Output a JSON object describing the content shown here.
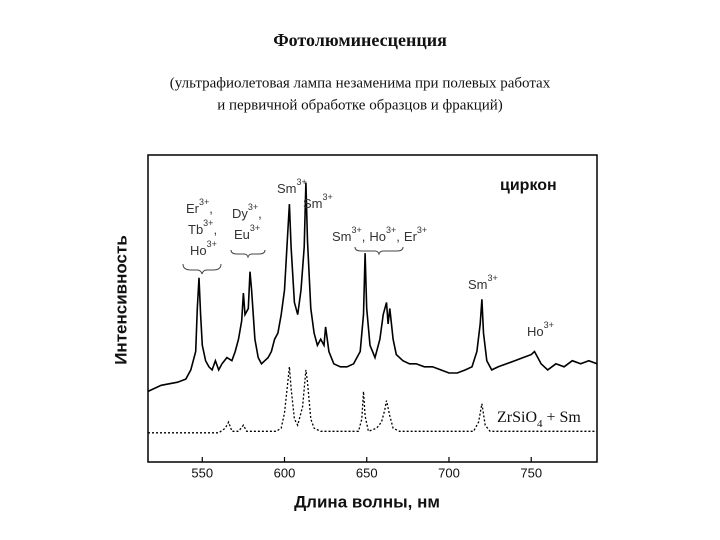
{
  "chart_data": {
    "type": "line",
    "title": "Фотолюминесценция",
    "subtitle": [
      "(ультрафиолетовая лампа незаменима при полевых работах",
      "и первичной обработке образцов и фракций)"
    ],
    "x_label": "Длина волны, нм",
    "y_label": "Интенсивность",
    "xlim": [
      517,
      790
    ],
    "xticks": [
      550,
      600,
      650,
      700,
      750
    ],
    "ylim": [
      0,
      100
    ],
    "series": [
      {
        "name": "циркон",
        "color": "#000000",
        "style": "solid",
        "x": [
          517,
          525,
          535,
          540,
          543,
          546,
          547,
          548,
          549,
          550,
          552,
          554,
          556,
          558,
          560,
          562,
          565,
          568,
          570,
          572,
          574,
          575,
          576,
          578,
          579,
          580,
          582,
          584,
          586,
          588,
          590,
          592,
          594,
          596,
          598,
          600,
          602,
          603,
          604,
          606,
          608,
          610,
          612,
          613,
          614,
          616,
          618,
          620,
          622,
          624,
          625,
          627,
          630,
          634,
          638,
          642,
          646,
          648,
          649,
          650,
          652,
          655,
          658,
          660,
          662,
          663,
          664,
          666,
          668,
          672,
          676,
          680,
          685,
          690,
          695,
          700,
          705,
          710,
          714,
          717,
          719,
          720,
          721,
          723,
          726,
          730,
          735,
          740,
          745,
          750,
          752,
          754,
          756,
          760,
          765,
          770,
          775,
          780,
          785,
          790
        ],
        "values": [
          23,
          25,
          26,
          27,
          30,
          36,
          50,
          60,
          48,
          38,
          33,
          31,
          30,
          33,
          30,
          32,
          34,
          33,
          36,
          40,
          46,
          55,
          48,
          50,
          62,
          56,
          40,
          34,
          32,
          33,
          34,
          36,
          40,
          42,
          48,
          56,
          75,
          84,
          70,
          52,
          48,
          56,
          70,
          91,
          72,
          50,
          42,
          38,
          40,
          38,
          44,
          36,
          32,
          31,
          31,
          32,
          36,
          48,
          68,
          50,
          38,
          34,
          40,
          48,
          52,
          45,
          50,
          40,
          35,
          33,
          32,
          32,
          31,
          31,
          30,
          29,
          29,
          30,
          31,
          36,
          45,
          53,
          42,
          33,
          30,
          31,
          32,
          33,
          34,
          35,
          36,
          34,
          32,
          30,
          32,
          31,
          33,
          32,
          33,
          32
        ]
      },
      {
        "name": "ZrSiO4 + Sm",
        "color": "#000000",
        "style": "dotted",
        "x": [
          517,
          540,
          560,
          564,
          566,
          568,
          572,
          575,
          577,
          585,
          595,
          598,
          600,
          602,
          603,
          604,
          606,
          608,
          611,
          613,
          614,
          616,
          618,
          622,
          630,
          640,
          645,
          647,
          648,
          649,
          651,
          656,
          659,
          661,
          662,
          664,
          666,
          670,
          680,
          700,
          715,
          718,
          720,
          722,
          725,
          750,
          790
        ],
        "values": [
          9.5,
          9.5,
          9.5,
          11,
          13,
          10,
          10,
          12,
          10,
          10,
          10,
          11,
          16,
          26,
          31,
          24,
          14,
          12,
          18,
          30,
          26,
          14,
          11,
          10,
          10,
          10,
          10,
          14,
          23,
          15,
          10,
          11,
          13,
          17,
          20,
          15,
          11,
          10,
          10,
          10,
          10,
          13,
          19,
          12,
          10,
          10,
          10
        ]
      }
    ],
    "annotations": [
      {
        "ions": [
          {
            "symbol": "Er",
            "charge": "3+"
          },
          {
            "symbol": "Tb",
            "charge": "3+"
          },
          {
            "symbol": "Ho",
            "charge": "3+"
          }
        ],
        "separator": ","
      },
      {
        "ions": [
          {
            "symbol": "Dy",
            "charge": "3+"
          },
          {
            "symbol": "Eu",
            "charge": "3+"
          }
        ],
        "separator": ","
      },
      {
        "ions": [
          {
            "symbol": "Sm",
            "charge": "3+"
          }
        ]
      },
      {
        "ions": [
          {
            "symbol": "Sm",
            "charge": "3+"
          }
        ]
      },
      {
        "ions": [
          {
            "symbol": "Sm",
            "charge": "3+"
          },
          {
            "symbol": "Ho",
            "charge": "3+"
          },
          {
            "symbol": "Er",
            "charge": "3+"
          }
        ],
        "separator": ","
      },
      {
        "ions": [
          {
            "symbol": "Sm",
            "charge": "3+"
          }
        ]
      },
      {
        "ions": [
          {
            "symbol": "Ho",
            "charge": "3+"
          }
        ]
      }
    ]
  }
}
